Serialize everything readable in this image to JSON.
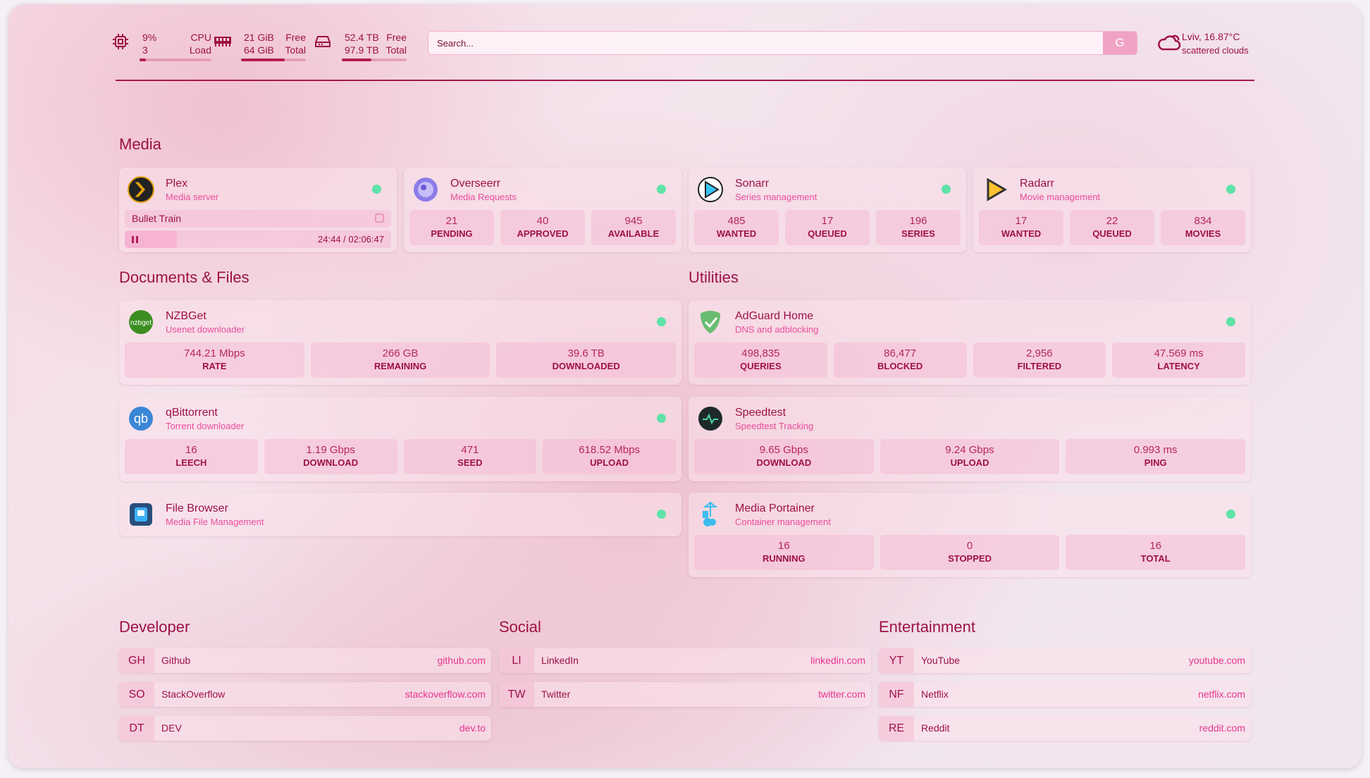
{
  "resources": {
    "cpu": {
      "icon": "cpu-icon",
      "value": "9%",
      "sub": "3",
      "label1": "CPU",
      "label2": "Load",
      "percent": 9
    },
    "memory": {
      "icon": "memory-icon",
      "value": "21 GiB",
      "sub": "64 GiB",
      "label1": "Free",
      "label2": "Total",
      "percent": 67
    },
    "disk": {
      "icon": "disk-icon",
      "value": "52.4 TB",
      "sub": "97.9 TB",
      "label1": "Free",
      "label2": "Total",
      "percent": 46
    }
  },
  "search": {
    "placeholder": "Search...",
    "button": "G"
  },
  "weather": {
    "icon": "cloud-icon",
    "location": "Lviv, 16.87°C",
    "condition": "scattered clouds"
  },
  "colors": {
    "accent": "#9d1145",
    "subtitle": "#ea4d9b",
    "status_up": "#5fe3a7"
  },
  "sections": {
    "media": {
      "title": "Media",
      "cards": [
        {
          "name": "Plex",
          "desc": "Media server",
          "icon": "plex-icon",
          "now_playing": {
            "title": "Bullet Train",
            "time": "24:44 / 02:06:47",
            "state": "paused",
            "progress": 19.5
          }
        },
        {
          "name": "Overseerr",
          "desc": "Media Requests",
          "icon": "overseerr-icon",
          "stats": [
            {
              "v": "21",
              "k": "PENDING"
            },
            {
              "v": "40",
              "k": "APPROVED"
            },
            {
              "v": "945",
              "k": "AVAILABLE"
            }
          ]
        },
        {
          "name": "Sonarr",
          "desc": "Series management",
          "icon": "sonarr-icon",
          "stats": [
            {
              "v": "485",
              "k": "WANTED"
            },
            {
              "v": "17",
              "k": "QUEUED"
            },
            {
              "v": "196",
              "k": "SERIES"
            }
          ]
        },
        {
          "name": "Radarr",
          "desc": "Movie management",
          "icon": "radarr-icon",
          "stats": [
            {
              "v": "17",
              "k": "WANTED"
            },
            {
              "v": "22",
              "k": "QUEUED"
            },
            {
              "v": "834",
              "k": "MOVIES"
            }
          ]
        }
      ]
    },
    "docs": {
      "title": "Documents & Files",
      "cards": [
        {
          "name": "NZBGet",
          "desc": "Usenet downloader",
          "icon": "nzbget-icon",
          "stats": [
            {
              "v": "744.21 Mbps",
              "k": "RATE"
            },
            {
              "v": "266 GB",
              "k": "REMAINING"
            },
            {
              "v": "39.6 TB",
              "k": "DOWNLOADED"
            }
          ]
        },
        {
          "name": "qBittorrent",
          "desc": "Torrent downloader",
          "icon": "qbittorrent-icon",
          "stats": [
            {
              "v": "16",
              "k": "LEECH"
            },
            {
              "v": "1.19 Gbps",
              "k": "DOWNLOAD"
            },
            {
              "v": "471",
              "k": "SEED"
            },
            {
              "v": "618.52 Mbps",
              "k": "UPLOAD"
            }
          ]
        },
        {
          "name": "File Browser",
          "desc": "Media File Management",
          "icon": "filebrowser-icon",
          "stats": []
        }
      ]
    },
    "utilities": {
      "title": "Utilities",
      "cards": [
        {
          "name": "AdGuard Home",
          "desc": "DNS and adblocking",
          "icon": "adguard-icon",
          "stats": [
            {
              "v": "498,835",
              "k": "QUERIES"
            },
            {
              "v": "86,477",
              "k": "BLOCKED"
            },
            {
              "v": "2,956",
              "k": "FILTERED"
            },
            {
              "v": "47.569 ms",
              "k": "LATENCY"
            }
          ]
        },
        {
          "name": "Speedtest",
          "desc": "Speedtest Tracking",
          "icon": "speedtest-icon",
          "nodot": true,
          "stats": [
            {
              "v": "9.65 Gbps",
              "k": "DOWNLOAD"
            },
            {
              "v": "9.24 Gbps",
              "k": "UPLOAD"
            },
            {
              "v": "0.993 ms",
              "k": "PING"
            }
          ]
        },
        {
          "name": "Media Portainer",
          "desc": "Container management",
          "icon": "portainer-icon",
          "stats": [
            {
              "v": "16",
              "k": "RUNNING"
            },
            {
              "v": "0",
              "k": "STOPPED"
            },
            {
              "v": "16",
              "k": "TOTAL"
            }
          ]
        }
      ]
    }
  },
  "bookmarks": [
    {
      "title": "Developer",
      "items": [
        {
          "abbr": "GH",
          "name": "Github",
          "url": "github.com"
        },
        {
          "abbr": "SO",
          "name": "StackOverflow",
          "url": "stackoverflow.com"
        },
        {
          "abbr": "DT",
          "name": "DEV",
          "url": "dev.to"
        }
      ]
    },
    {
      "title": "Social",
      "items": [
        {
          "abbr": "LI",
          "name": "LinkedIn",
          "url": "linkedin.com"
        },
        {
          "abbr": "TW",
          "name": "Twitter",
          "url": "twitter.com"
        }
      ]
    },
    {
      "title": "Entertainment",
      "items": [
        {
          "abbr": "YT",
          "name": "YouTube",
          "url": "youtube.com"
        },
        {
          "abbr": "NF",
          "name": "Netflix",
          "url": "netflix.com"
        },
        {
          "abbr": "RE",
          "name": "Reddit",
          "url": "reddit.com"
        }
      ]
    }
  ]
}
